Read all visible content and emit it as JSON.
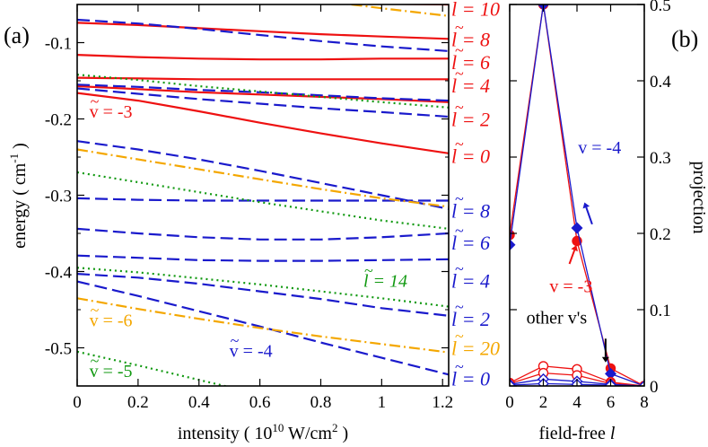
{
  "chart_data": [
    {
      "type": "line",
      "panel_label": "(a)",
      "xlabel": "intensity ( 10",
      "xlabel_sup": "10",
      "xlabel_tail": " W/cm",
      "xlabel_sup2": "2",
      "xlabel_close": " )",
      "ylabel": "energy ( cm",
      "ylabel_sup": "-1",
      "ylabel_close": " )",
      "xlim": [
        0,
        1.22
      ],
      "ylim": [
        -0.55,
        -0.05
      ],
      "xticks": [
        "0",
        "0.2",
        "0.4",
        "0.6",
        "0.8",
        "1",
        "1.2"
      ],
      "xtick_values": [
        0,
        0.2,
        0.4,
        0.6,
        0.8,
        1.0,
        1.2
      ],
      "yticks": [
        "-0.1",
        "-0.2",
        "-0.3",
        "-0.4",
        "-0.5"
      ],
      "ytick_values": [
        -0.1,
        -0.2,
        -0.3,
        -0.4,
        -0.5
      ],
      "x": [
        0,
        0.2,
        0.4,
        0.6,
        0.8,
        1.0,
        1.22
      ],
      "series": [
        {
          "name": "v=-3, l=10",
          "vib": "-3",
          "color": "#ee1111",
          "dash": "solid",
          "values": [
            -0.045,
            -0.046,
            -0.046,
            -0.047,
            -0.048,
            -0.049,
            -0.05
          ]
        },
        {
          "name": "v=-3, l=8",
          "vib": "-3",
          "color": "#ee1111",
          "dash": "solid",
          "values": [
            -0.074,
            -0.077,
            -0.081,
            -0.085,
            -0.089,
            -0.092,
            -0.095
          ]
        },
        {
          "name": "v=-3, l=6",
          "vib": "-3",
          "color": "#ee1111",
          "dash": "solid",
          "values": [
            -0.116,
            -0.119,
            -0.121,
            -0.122,
            -0.122,
            -0.121,
            -0.121
          ]
        },
        {
          "name": "v=-3, l=4",
          "vib": "-3",
          "color": "#ee1111",
          "dash": "solid",
          "values": [
            -0.146,
            -0.147,
            -0.148,
            -0.148,
            -0.148,
            -0.148,
            -0.148
          ]
        },
        {
          "name": "v=-3, l=2",
          "vib": "-3",
          "color": "#ee1111",
          "dash": "solid",
          "values": [
            -0.157,
            -0.161,
            -0.165,
            -0.168,
            -0.171,
            -0.174,
            -0.178
          ]
        },
        {
          "name": "v=-3, l=0",
          "vib": "-3",
          "color": "#ee1111",
          "dash": "solid",
          "values": [
            -0.166,
            -0.176,
            -0.19,
            -0.205,
            -0.219,
            -0.232,
            -0.245
          ]
        },
        {
          "name": "v=-4, l=10",
          "vib": "-4",
          "color": "#1a1acc",
          "dash": "dashed",
          "values": [
            -0.07,
            -0.075,
            -0.082,
            -0.09,
            -0.098,
            -0.105,
            -0.111
          ]
        },
        {
          "name": "v=-4, l=8 (upper)",
          "vib": "-4",
          "color": "#1a1acc",
          "dash": "dashed",
          "values": [
            -0.155,
            -0.158,
            -0.162,
            -0.165,
            -0.169,
            -0.173,
            -0.176
          ]
        },
        {
          "name": "v=-4, l=6 (upper)",
          "vib": "-4",
          "color": "#1a1acc",
          "dash": "dashed",
          "values": [
            -0.16,
            -0.167,
            -0.174,
            -0.18,
            -0.186,
            -0.191,
            -0.197
          ]
        },
        {
          "name": "v=-4, l=8",
          "vib": "-4",
          "color": "#1a1acc",
          "dash": "dashed",
          "values": [
            -0.229,
            -0.24,
            -0.253,
            -0.268,
            -0.284,
            -0.3,
            -0.318
          ]
        },
        {
          "name": "v=-4, l=6",
          "vib": "-4",
          "color": "#1a1acc",
          "dash": "dashed",
          "values": [
            -0.304,
            -0.306,
            -0.307,
            -0.307,
            -0.307,
            -0.307,
            -0.307
          ]
        },
        {
          "name": "v=-4, l=4",
          "vib": "-4",
          "color": "#1a1acc",
          "dash": "dashed",
          "values": [
            -0.344,
            -0.35,
            -0.355,
            -0.358,
            -0.358,
            -0.355,
            -0.35
          ]
        },
        {
          "name": "v=-4, l=2",
          "vib": "-4",
          "color": "#1a1acc",
          "dash": "dashed",
          "values": [
            -0.379,
            -0.382,
            -0.385,
            -0.386,
            -0.386,
            -0.385,
            -0.384
          ]
        },
        {
          "name": "v=-4, l=0",
          "vib": "-4",
          "color": "#1a1acc",
          "dash": "dashed",
          "values": [
            -0.403,
            -0.408,
            -0.416,
            -0.426,
            -0.436,
            -0.448,
            -0.458
          ]
        },
        {
          "name": "v=-4, l=0 (lowest)",
          "vib": "-4",
          "color": "#1a1acc",
          "dash": "dashed",
          "values": [
            -0.413,
            -0.432,
            -0.452,
            -0.472,
            -0.493,
            -0.513,
            -0.535
          ]
        },
        {
          "name": "v=-6, l=20",
          "vib": "-6",
          "color": "#f4a700",
          "dash": "dashdot",
          "values": [
            -0.005,
            -0.015,
            -0.025,
            -0.035,
            -0.045,
            -0.055,
            -0.065
          ]
        },
        {
          "name": "v=-6 (upper)",
          "vib": "-6",
          "color": "#f4a700",
          "dash": "dashdot",
          "values": [
            -0.24,
            -0.253,
            -0.266,
            -0.279,
            -0.292,
            -0.304,
            -0.315
          ]
        },
        {
          "name": "v=-6",
          "vib": "-6",
          "color": "#f4a700",
          "dash": "dashdot",
          "values": [
            -0.435,
            -0.449,
            -0.462,
            -0.474,
            -0.485,
            -0.495,
            -0.506
          ]
        },
        {
          "name": "v=-5, l=14 (upper)",
          "vib": "-5",
          "color": "#119911",
          "dash": "dotted",
          "values": [
            -0.142,
            -0.149,
            -0.157,
            -0.164,
            -0.171,
            -0.178,
            -0.185
          ]
        },
        {
          "name": "v=-5, l=14 (mid)",
          "vib": "-5",
          "color": "#119911",
          "dash": "dotted",
          "values": [
            -0.27,
            -0.283,
            -0.296,
            -0.309,
            -0.321,
            -0.333,
            -0.344
          ]
        },
        {
          "name": "v=-5, l=14",
          "vib": "-5",
          "color": "#119911",
          "dash": "dotted",
          "values": [
            -0.395,
            -0.401,
            -0.409,
            -0.417,
            -0.426,
            -0.435,
            -0.446
          ]
        },
        {
          "name": "v=-5",
          "vib": "-5",
          "color": "#119911",
          "dash": "dotted",
          "values": [
            -0.505,
            -0.523,
            -0.542,
            -0.561,
            -0.58,
            -0.6,
            -0.62
          ]
        }
      ],
      "right_labels": [
        {
          "prefix": "l",
          "text": " = 10",
          "color": "#ee1111",
          "y": -0.055
        },
        {
          "prefix": "l",
          "text": " = 8",
          "color": "#ee1111",
          "y": -0.095
        },
        {
          "prefix": "l",
          "text": " = 6",
          "color": "#ee1111",
          "y": -0.125
        },
        {
          "prefix": "l",
          "text": " = 4",
          "color": "#ee1111",
          "y": -0.156
        },
        {
          "prefix": "l",
          "text": " = 2",
          "color": "#ee1111",
          "y": -0.2
        },
        {
          "prefix": "l",
          "text": " = 0",
          "color": "#ee1111",
          "y": -0.248
        },
        {
          "prefix": "l",
          "text": " = 8",
          "color": "#1a1acc",
          "y": -0.32
        },
        {
          "prefix": "l",
          "text": " = 6",
          "color": "#1a1acc",
          "y": -0.362
        },
        {
          "prefix": "l",
          "text": " = 4",
          "color": "#1a1acc",
          "y": -0.412
        },
        {
          "prefix": "l",
          "text": " = 2",
          "color": "#1a1acc",
          "y": -0.462
        },
        {
          "prefix": "l",
          "text": " = 20",
          "color": "#f4a700",
          "y": -0.5
        },
        {
          "prefix": "l",
          "text": " = 0",
          "color": "#1a1acc",
          "y": -0.54
        }
      ],
      "annotations": [
        {
          "text": "v = -3",
          "color": "#ee1111",
          "x": 0.04,
          "y": -0.198
        },
        {
          "text": "v = -6",
          "color": "#f4a700",
          "x": 0.04,
          "y": -0.472
        },
        {
          "text": "v = -5",
          "color": "#119911",
          "x": 0.04,
          "y": -0.538
        },
        {
          "text": "v = -4",
          "color": "#1a1acc",
          "x": 0.5,
          "y": -0.512
        },
        {
          "text": "l = 14",
          "color": "#119911",
          "x": 0.94,
          "y": -0.42
        }
      ]
    },
    {
      "type": "line",
      "panel_label": "(b)",
      "xlabel": "field-free",
      "xlabel_var": "l",
      "ylabel": "projection",
      "xlim": [
        0,
        8
      ],
      "ylim": [
        0,
        0.5
      ],
      "xticks": [
        "0",
        "2",
        "4",
        "6",
        "8"
      ],
      "xtick_values": [
        0,
        2,
        4,
        6,
        8
      ],
      "yticks": [
        "0",
        "0.1",
        "0.2",
        "0.3",
        "0.4",
        "0.5"
      ],
      "ytick_values": [
        0,
        0.1,
        0.2,
        0.3,
        0.4,
        0.5
      ],
      "x": [
        0,
        2,
        4,
        6,
        8
      ],
      "series": [
        {
          "name": "v = -3",
          "color": "#ee1111",
          "marker": "circle-filled",
          "values": [
            0.198,
            0.5,
            0.19,
            0.023,
            0.0
          ]
        },
        {
          "name": "v = -4",
          "color": "#1a1acc",
          "marker": "diamond-filled",
          "values": [
            0.185,
            0.5,
            0.207,
            0.016,
            0.0
          ]
        },
        {
          "name": "other v's (red)",
          "color": "#ee1111",
          "marker": "circle-open",
          "values": [
            0.004,
            0.026,
            0.022,
            0.005,
            0.0
          ]
        },
        {
          "name": "other v's (red, 2)",
          "color": "#ee1111",
          "marker": "circle-open",
          "values": [
            0.003,
            0.017,
            0.014,
            0.003,
            0.0
          ]
        },
        {
          "name": "other v's (blue)",
          "color": "#1a1acc",
          "marker": "diamond-open",
          "values": [
            0.002,
            0.009,
            0.006,
            0.002,
            0.0
          ]
        },
        {
          "name": "other v's (blue, 2)",
          "color": "#1a1acc",
          "marker": "diamond-open",
          "values": [
            0.001,
            0.003,
            0.002,
            0.001,
            0.0
          ]
        }
      ],
      "annotations": [
        {
          "text": "v = -4",
          "color": "#1a1acc",
          "x": 6.2,
          "y": 0.305
        },
        {
          "text": "v = -3",
          "color": "#ee1111",
          "x": 4.5,
          "y": 0.123
        },
        {
          "text": "other v's",
          "color": "#000000",
          "x": 4.3,
          "y": 0.082
        }
      ]
    }
  ]
}
